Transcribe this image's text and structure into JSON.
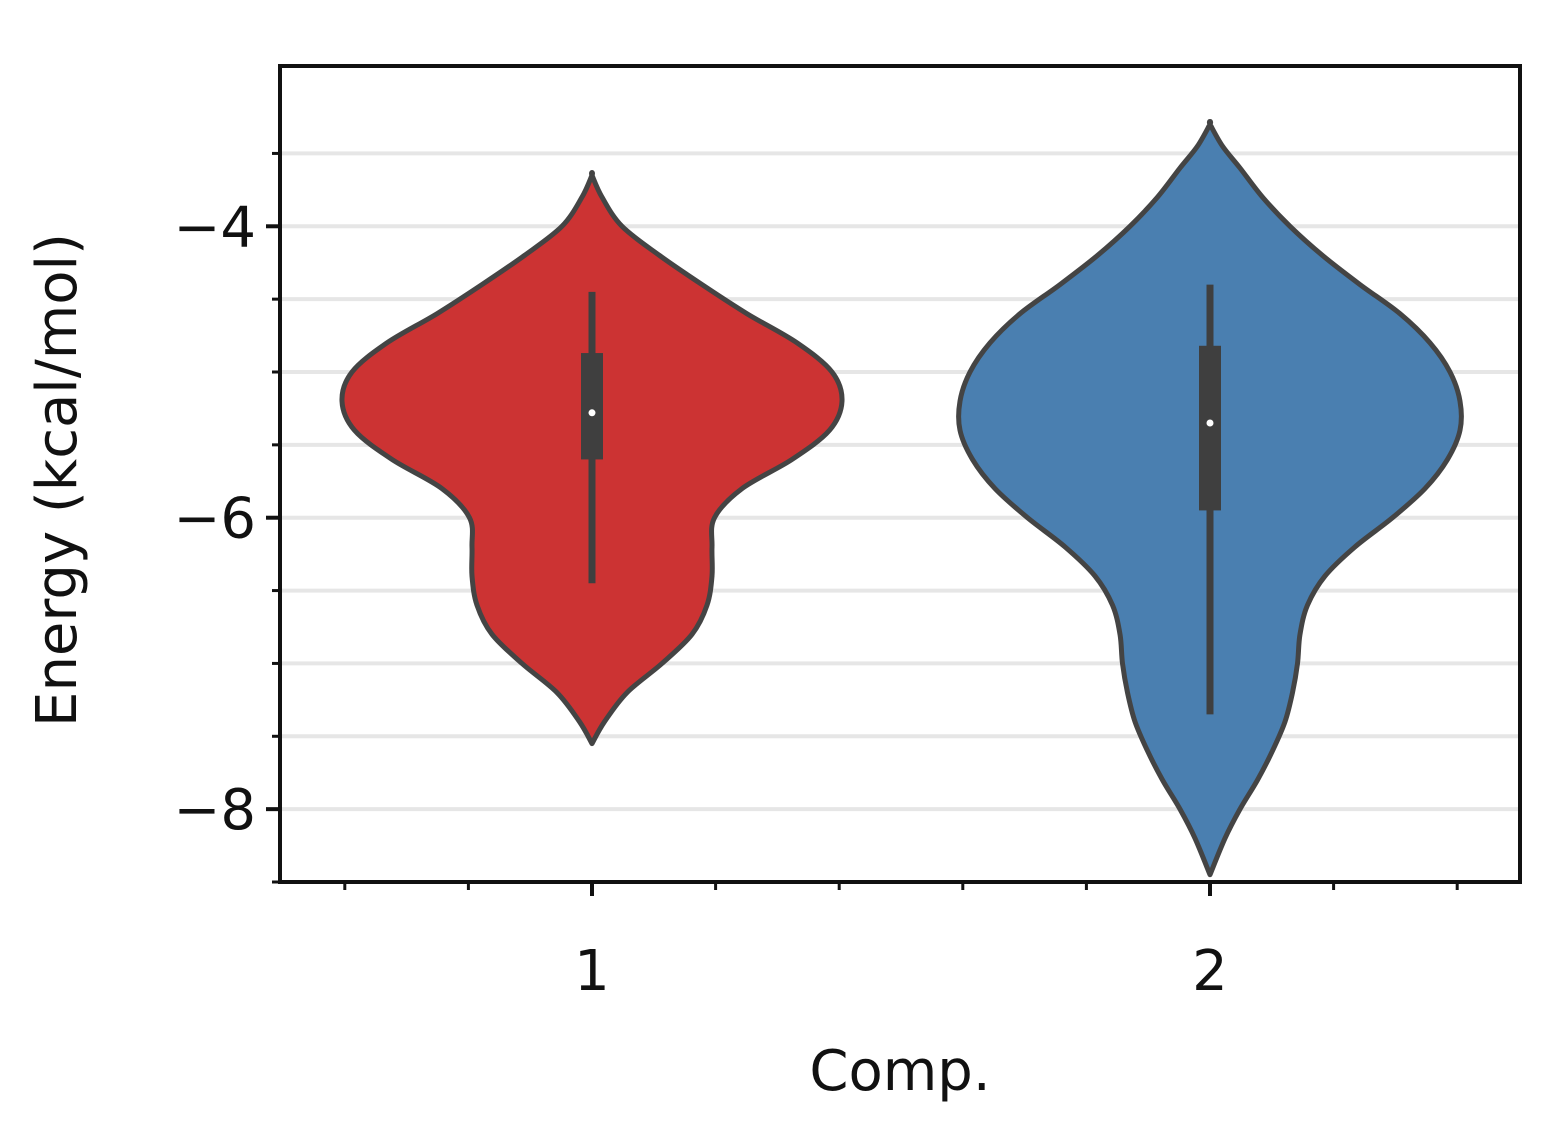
{
  "chart_data": {
    "type": "violin",
    "title": "",
    "xlabel": "Comp.",
    "ylabel": "Energy (kcal/mol)",
    "ylim": [
      -8.5,
      -2.9
    ],
    "y_major_ticks": [
      -8,
      -6,
      -4
    ],
    "y_major_tick_labels": [
      "−8",
      "−6",
      "−4"
    ],
    "y_minor_ticks": [
      -8.5,
      -7.5,
      -7.0,
      -6.5,
      -5.5,
      -5.0,
      -4.5,
      -3.5
    ],
    "grid": "horizontal",
    "categories": [
      "1",
      "2"
    ],
    "violins": [
      {
        "category": "1",
        "color": "#cc3333",
        "min": -7.5,
        "max": -3.7,
        "q1": -5.6,
        "median": -5.28,
        "q3": -4.87,
        "whisker_low": -6.45,
        "whisker_high": -4.45,
        "density_profile": [
          [
            -7.55,
            0.0
          ],
          [
            -7.4,
            0.05
          ],
          [
            -7.2,
            0.14
          ],
          [
            -7.0,
            0.28
          ],
          [
            -6.8,
            0.4
          ],
          [
            -6.6,
            0.46
          ],
          [
            -6.4,
            0.48
          ],
          [
            -6.2,
            0.48
          ],
          [
            -6.0,
            0.49
          ],
          [
            -5.8,
            0.6
          ],
          [
            -5.6,
            0.8
          ],
          [
            -5.4,
            0.95
          ],
          [
            -5.2,
            1.0
          ],
          [
            -5.0,
            0.96
          ],
          [
            -4.8,
            0.82
          ],
          [
            -4.6,
            0.62
          ],
          [
            -4.4,
            0.44
          ],
          [
            -4.2,
            0.27
          ],
          [
            -4.0,
            0.12
          ],
          [
            -3.8,
            0.04
          ],
          [
            -3.65,
            0.0
          ]
        ]
      },
      {
        "category": "2",
        "color": "#4a7fb0",
        "min": -8.4,
        "max": -3.35,
        "q1": -5.95,
        "median": -5.35,
        "q3": -4.82,
        "whisker_low": -7.35,
        "whisker_high": -4.4,
        "density_profile": [
          [
            -8.45,
            0.0
          ],
          [
            -8.2,
            0.06
          ],
          [
            -8.0,
            0.12
          ],
          [
            -7.8,
            0.19
          ],
          [
            -7.6,
            0.25
          ],
          [
            -7.4,
            0.3
          ],
          [
            -7.2,
            0.33
          ],
          [
            -7.0,
            0.35
          ],
          [
            -6.8,
            0.36
          ],
          [
            -6.6,
            0.39
          ],
          [
            -6.4,
            0.46
          ],
          [
            -6.2,
            0.58
          ],
          [
            -6.0,
            0.73
          ],
          [
            -5.8,
            0.86
          ],
          [
            -5.6,
            0.95
          ],
          [
            -5.4,
            1.0
          ],
          [
            -5.2,
            1.0
          ],
          [
            -5.0,
            0.96
          ],
          [
            -4.8,
            0.88
          ],
          [
            -4.6,
            0.76
          ],
          [
            -4.4,
            0.6
          ],
          [
            -4.2,
            0.45
          ],
          [
            -4.0,
            0.32
          ],
          [
            -3.8,
            0.21
          ],
          [
            -3.6,
            0.12
          ],
          [
            -3.45,
            0.05
          ],
          [
            -3.3,
            0.0
          ]
        ]
      }
    ]
  }
}
